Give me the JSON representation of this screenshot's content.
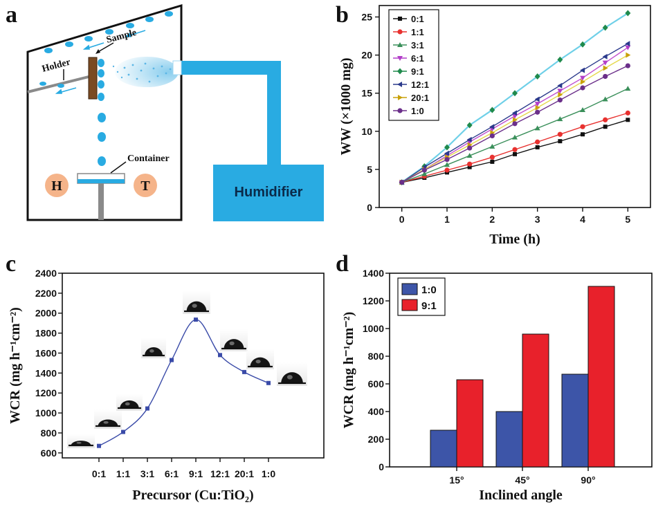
{
  "panels": {
    "a": "a",
    "b": "b",
    "c": "c",
    "d": "d"
  },
  "diagram": {
    "labels": {
      "sample": "Sample",
      "holder": "Holder",
      "container": "Container",
      "h": "H",
      "t": "T",
      "humidifier": "Humidifier"
    },
    "colors": {
      "water": "#29abe2",
      "holder_wood": "#7a4a22",
      "sensor": "#f5b48a",
      "stand": "#8a8a8a"
    }
  },
  "chart_data": [
    {
      "panel": "b",
      "type": "line",
      "xlabel": "Time (h)",
      "ylabel": "WW (×1000 mg)",
      "xlim": [
        -0.5,
        5.5
      ],
      "ylim": [
        0,
        26.5
      ],
      "xticks": [
        0,
        1,
        2,
        3,
        4,
        5
      ],
      "yticks": [
        0,
        5,
        10,
        15,
        20,
        25
      ],
      "legend_position": "top-left",
      "x": [
        0,
        0.5,
        1,
        1.5,
        2,
        2.5,
        3,
        3.5,
        4,
        4.5,
        5
      ],
      "series": [
        {
          "name": "0:1",
          "color": "#111111",
          "marker": "square",
          "values": [
            3.3,
            3.9,
            4.6,
            5.3,
            6.0,
            7.0,
            7.9,
            8.7,
            9.6,
            10.6,
            11.5
          ]
        },
        {
          "name": "1:1",
          "color": "#e8312f",
          "marker": "circle",
          "values": [
            3.3,
            4.1,
            4.9,
            5.7,
            6.6,
            7.6,
            8.6,
            9.6,
            10.6,
            11.5,
            12.4
          ]
        },
        {
          "name": "3:1",
          "color": "#3a8f5a",
          "marker": "triangle-up",
          "values": [
            3.3,
            4.4,
            5.6,
            6.8,
            8.0,
            9.2,
            10.4,
            11.6,
            12.8,
            14.2,
            15.6
          ]
        },
        {
          "name": "6:1",
          "color": "#b23ec8",
          "marker": "triangle-down",
          "values": [
            3.3,
            5.0,
            6.8,
            8.6,
            10.3,
            12.0,
            13.6,
            15.3,
            17.0,
            19.0,
            21.0
          ]
        },
        {
          "name": "9:1",
          "color": "#1f8a4c",
          "marker": "diamond",
          "values": [
            3.3,
            5.4,
            7.9,
            10.8,
            12.8,
            15.0,
            17.2,
            19.4,
            21.4,
            23.6,
            25.5
          ]
        },
        {
          "name": "12:1",
          "color": "#2b3a8c",
          "marker": "triangle-left",
          "values": [
            3.3,
            5.3,
            7.1,
            8.9,
            10.6,
            12.4,
            14.2,
            16.0,
            18.0,
            19.8,
            21.5
          ]
        },
        {
          "name": "20:1",
          "color": "#c9a10a",
          "marker": "triangle-right",
          "values": [
            3.3,
            5.0,
            6.6,
            8.2,
            9.8,
            11.5,
            13.1,
            14.8,
            16.5,
            18.3,
            20.0
          ]
        },
        {
          "name": "1:0",
          "color": "#6b2f8a",
          "marker": "circle",
          "values": [
            3.3,
            4.9,
            6.3,
            7.8,
            9.4,
            11.0,
            12.5,
            14.1,
            15.7,
            17.2,
            18.6
          ]
        }
      ]
    },
    {
      "panel": "c",
      "type": "line",
      "xlabel": "Precursor (Cu:TiO₂)",
      "ylabel": "WCR (mg h⁻¹cm⁻²)",
      "ylim": [
        550,
        2400
      ],
      "yticks": [
        600,
        800,
        1000,
        1200,
        1400,
        1600,
        1800,
        2000,
        2200,
        2400
      ],
      "categories": [
        "0:1",
        "1:1",
        "3:1",
        "6:1",
        "9:1",
        "12:1",
        "20:1",
        "1:0"
      ],
      "values": [
        670,
        810,
        1045,
        1530,
        1935,
        1580,
        1410,
        1300
      ],
      "color": "#3a4ba8"
    },
    {
      "panel": "d",
      "type": "bar",
      "xlabel": "Inclined angle",
      "ylabel": "WCR (mg h⁻¹cm⁻²)",
      "ylim": [
        0,
        1400
      ],
      "yticks": [
        0,
        200,
        400,
        600,
        800,
        1000,
        1200,
        1400
      ],
      "categories": [
        "15°",
        "45°",
        "90°"
      ],
      "legend_position": "top-left",
      "series": [
        {
          "name": "1:0",
          "color": "#3d55a8",
          "values": [
            265,
            400,
            670
          ]
        },
        {
          "name": "9:1",
          "color": "#e8212b",
          "values": [
            630,
            960,
            1305
          ]
        }
      ]
    }
  ]
}
